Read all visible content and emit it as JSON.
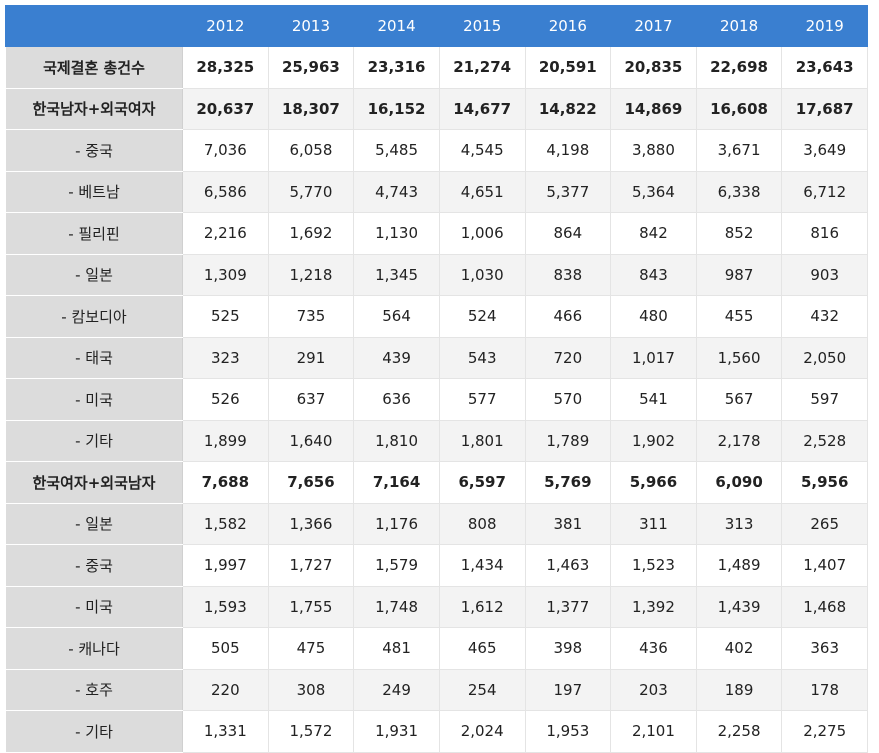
{
  "years": [
    "2012",
    "2013",
    "2014",
    "2015",
    "2016",
    "2017",
    "2018",
    "2019"
  ],
  "rows": [
    {
      "label": "국제결혼 총건수",
      "bold": true,
      "values": [
        "28,325",
        "25,963",
        "23,316",
        "21,274",
        "20,591",
        "20,835",
        "22,698",
        "23,643"
      ]
    },
    {
      "label": "한국남자+외국여자",
      "bold": true,
      "values": [
        "20,637",
        "18,307",
        "16,152",
        "14,677",
        "14,822",
        "14,869",
        "16,608",
        "17,687"
      ]
    },
    {
      "label": "- 중국",
      "bold": false,
      "values": [
        "7,036",
        "6,058",
        "5,485",
        "4,545",
        "4,198",
        "3,880",
        "3,671",
        "3,649"
      ]
    },
    {
      "label": "- 베트남",
      "bold": false,
      "values": [
        "6,586",
        "5,770",
        "4,743",
        "4,651",
        "5,377",
        "5,364",
        "6,338",
        "6,712"
      ]
    },
    {
      "label": "- 필리핀",
      "bold": false,
      "values": [
        "2,216",
        "1,692",
        "1,130",
        "1,006",
        "864",
        "842",
        "852",
        "816"
      ]
    },
    {
      "label": "- 일본",
      "bold": false,
      "values": [
        "1,309",
        "1,218",
        "1,345",
        "1,030",
        "838",
        "843",
        "987",
        "903"
      ]
    },
    {
      "label": "- 캄보디아",
      "bold": false,
      "values": [
        "525",
        "735",
        "564",
        "524",
        "466",
        "480",
        "455",
        "432"
      ]
    },
    {
      "label": "- 태국",
      "bold": false,
      "values": [
        "323",
        "291",
        "439",
        "543",
        "720",
        "1,017",
        "1,560",
        "2,050"
      ]
    },
    {
      "label": "- 미국",
      "bold": false,
      "values": [
        "526",
        "637",
        "636",
        "577",
        "570",
        "541",
        "567",
        "597"
      ]
    },
    {
      "label": "- 기타",
      "bold": false,
      "values": [
        "1,899",
        "1,640",
        "1,810",
        "1,801",
        "1,789",
        "1,902",
        "2,178",
        "2,528"
      ]
    },
    {
      "label": "한국여자+외국남자",
      "bold": true,
      "values": [
        "7,688",
        "7,656",
        "7,164",
        "6,597",
        "5,769",
        "5,966",
        "6,090",
        "5,956"
      ]
    },
    {
      "label": "- 일본",
      "bold": false,
      "values": [
        "1,582",
        "1,366",
        "1,176",
        "808",
        "381",
        "311",
        "313",
        "265"
      ]
    },
    {
      "label": "- 중국",
      "bold": false,
      "values": [
        "1,997",
        "1,727",
        "1,579",
        "1,434",
        "1,463",
        "1,523",
        "1,489",
        "1,407"
      ]
    },
    {
      "label": "- 미국",
      "bold": false,
      "values": [
        "1,593",
        "1,755",
        "1,748",
        "1,612",
        "1,377",
        "1,392",
        "1,439",
        "1,468"
      ]
    },
    {
      "label": "- 캐나다",
      "bold": false,
      "values": [
        "505",
        "475",
        "481",
        "465",
        "398",
        "436",
        "402",
        "363"
      ]
    },
    {
      "label": "- 호주",
      "bold": false,
      "values": [
        "220",
        "308",
        "249",
        "254",
        "197",
        "203",
        "189",
        "178"
      ]
    },
    {
      "label": "- 기타",
      "bold": false,
      "values": [
        "1,331",
        "1,572",
        "1,931",
        "2,024",
        "1,953",
        "2,101",
        "2,258",
        "2,275"
      ]
    }
  ]
}
